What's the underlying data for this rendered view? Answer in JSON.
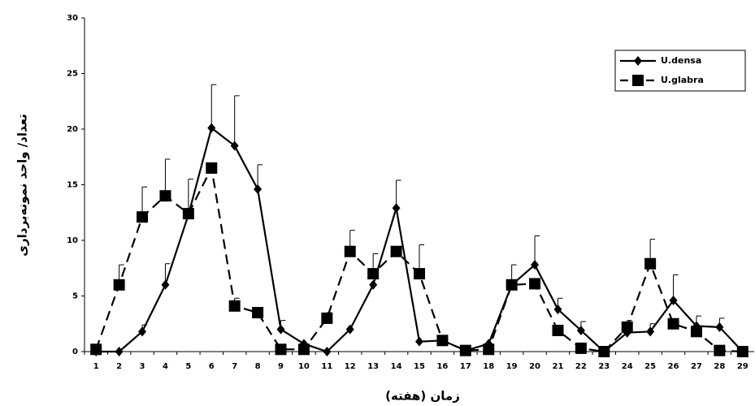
{
  "chart_data": {
    "type": "line",
    "xlabel": "زمان (هفته)",
    "ylabel": "تعداد/ واحد نمونه‌برداری",
    "categories": [
      "1",
      "2",
      "3",
      "4",
      "5",
      "6",
      "7",
      "8",
      "9",
      "10",
      "11",
      "12",
      "13",
      "14",
      "15",
      "16",
      "17",
      "18",
      "19",
      "20",
      "21",
      "22",
      "23",
      "24",
      "25",
      "26",
      "27",
      "28",
      "29"
    ],
    "ylim": [
      0,
      30
    ],
    "yticks": [
      0,
      5,
      10,
      15,
      20,
      25,
      30
    ],
    "grid": false,
    "legend": "upper right",
    "series": [
      {
        "name": "U.densa",
        "color": "#000000",
        "linestyle": "solid",
        "marker": "diamond",
        "values": [
          0,
          0,
          1.8,
          6,
          12.3,
          20.1,
          18.5,
          14.6,
          2,
          0.7,
          0,
          2,
          6,
          12.9,
          0.9,
          1,
          0.1,
          0.7,
          6,
          7.8,
          3.8,
          1.9,
          0,
          1.7,
          1.8,
          4.6,
          2.3,
          2.2,
          0
        ],
        "errors": [
          null,
          null,
          0.6,
          1.9,
          3.2,
          3.9,
          4.5,
          2.2,
          0.8,
          null,
          null,
          null,
          null,
          2.5,
          null,
          null,
          null,
          null,
          null,
          2.6,
          1,
          0.8,
          null,
          null,
          0.7,
          2.3,
          0.9,
          0.8,
          null
        ]
      },
      {
        "name": "U.glabra",
        "color": "#000000",
        "linestyle": "dashed",
        "marker": "square",
        "values": [
          0.2,
          6,
          12.1,
          14,
          12.4,
          16.5,
          4.1,
          3.5,
          0.2,
          0.2,
          3,
          9,
          7,
          9,
          7,
          1,
          0.1,
          0.2,
          6,
          6.1,
          1.9,
          0.3,
          0,
          2.2,
          7.9,
          2.5,
          1.8,
          0.1,
          0
        ],
        "errors": [
          null,
          1.8,
          2.7,
          3.3,
          null,
          null,
          0.7,
          null,
          null,
          null,
          0.5,
          1.9,
          1.8,
          null,
          2.6,
          null,
          null,
          null,
          1.8,
          null,
          null,
          null,
          null,
          0.6,
          2.2,
          null,
          null,
          null,
          null
        ]
      }
    ]
  }
}
